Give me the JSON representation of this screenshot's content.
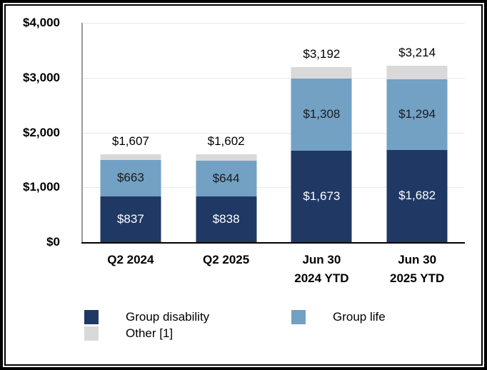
{
  "chart_data": {
    "type": "bar",
    "stacked": true,
    "title": "",
    "xlabel": "",
    "ylabel": "",
    "ylim": [
      0,
      4000
    ],
    "grid": "horizontal",
    "legend_position": "bottom",
    "y_ticks": [
      "$4,000",
      "$3,000",
      "$2,000",
      "$1,000",
      "$0"
    ],
    "categories": [
      [
        "Q2 2024"
      ],
      [
        "Q2 2025"
      ],
      [
        "Jun 30",
        "2024 YTD"
      ],
      [
        "Jun 30",
        "2025 YTD"
      ]
    ],
    "series": [
      {
        "key": "group-disability",
        "name": "Group disability",
        "color": "#203864",
        "label_color": "#ffffff",
        "values": [
          837,
          838,
          1673,
          1682
        ],
        "labels": [
          "$837",
          "$838",
          "$1,673",
          "$1,682"
        ]
      },
      {
        "key": "group-life",
        "name": "Group life",
        "color": "#72a1c4",
        "label_color": "#1a1a1a",
        "values": [
          663,
          644,
          1308,
          1294
        ],
        "labels": [
          "$663",
          "$644",
          "$1,308",
          "$1,294"
        ]
      },
      {
        "key": "other",
        "name": "Other [1]",
        "color": "#d9d9d9",
        "label_color": "#1a1a1a",
        "values": [
          107,
          120,
          211,
          238
        ],
        "labels": [
          "",
          "",
          "",
          ""
        ]
      }
    ],
    "totals": [
      "$1,607",
      "$1,602",
      "$3,192",
      "$3,214"
    ],
    "colors": {
      "axis_line": "#9a9a9a",
      "gridline": "#e8e8e8",
      "baseline": "#000000",
      "frame": "#000000"
    }
  }
}
